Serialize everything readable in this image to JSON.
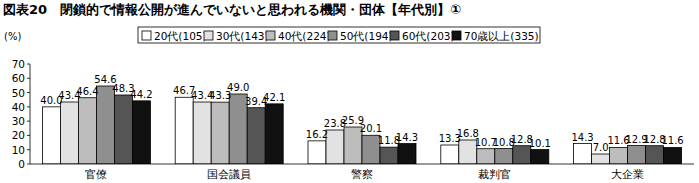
{
  "chart_data": {
    "type": "bar",
    "title": "図表20　閉鎖的で情報公開が進んでいないと思われる機関・団体【年代別】①",
    "y_label": "(%)",
    "categories": [
      "官僚",
      "国会議員",
      "警察",
      "裁判官",
      "大企業"
    ],
    "series": [
      {
        "name": "20代(105)",
        "color": "#ffffff",
        "values": [
          40.0,
          46.7,
          16.2,
          13.3,
          14.3
        ],
        "value_labels": [
          "40.0",
          "46.7",
          "16.2",
          "13.3",
          "14.3"
        ]
      },
      {
        "name": "30代(143)",
        "color": "#e2e2e2",
        "values": [
          43.4,
          43.4,
          23.8,
          16.8,
          7.0
        ],
        "value_labels": [
          "43.4",
          "43.4",
          "23.8",
          "16.8",
          "7.0"
        ]
      },
      {
        "name": "40代(224)",
        "color": "#bdbdbd",
        "values": [
          46.4,
          43.3,
          25.9,
          10.7,
          11.6
        ],
        "value_labels": [
          "46.4",
          "43.3",
          "25.9",
          "10.7",
          "11.6"
        ]
      },
      {
        "name": "50代(194)",
        "color": "#8f8f8f",
        "values": [
          54.6,
          49.0,
          20.1,
          10.8,
          12.9
        ],
        "value_labels": [
          "54.6",
          "49.0",
          "20.1",
          "10.8",
          "12.9"
        ]
      },
      {
        "name": "60代(203)",
        "color": "#555555",
        "values": [
          48.3,
          39.4,
          11.8,
          12.8,
          12.8
        ],
        "value_labels": [
          "48.3",
          "39.4",
          "11.8",
          "12.8",
          "12.8"
        ]
      },
      {
        "name": "70歳以上(335)",
        "color": "#111111",
        "values": [
          44.2,
          42.1,
          14.3,
          10.1,
          11.6
        ],
        "value_labels": [
          "44.2",
          "42.1",
          "14.3",
          "10.1",
          "11.6"
        ]
      }
    ],
    "ylim": [
      0,
      70
    ],
    "yticks": [
      0,
      10,
      20,
      30,
      40,
      50,
      60,
      70
    ],
    "grid": false,
    "legend": "top",
    "data_labels": true
  }
}
